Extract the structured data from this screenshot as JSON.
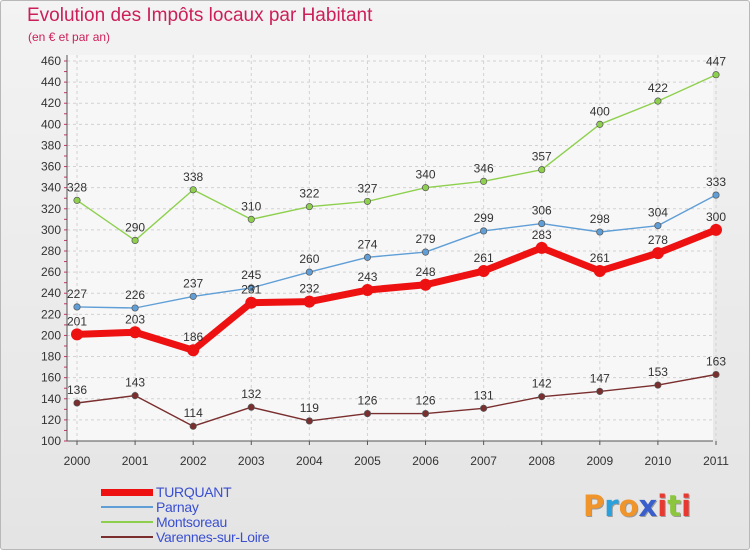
{
  "header": {
    "title": "Evolution des Impôts locaux par Habitant",
    "subtitle": "(en € et par an)"
  },
  "logo": {
    "text": "Proxiti",
    "letters": [
      {
        "char": "P",
        "color": "#f0942c"
      },
      {
        "char": "r",
        "color": "#2aa0dc"
      },
      {
        "char": "o",
        "color": "#f0942c"
      },
      {
        "char": "x",
        "color": "#3a5fcd"
      },
      {
        "char": "i",
        "color": "#e8382f"
      },
      {
        "char": "t",
        "color": "#8cc63f"
      },
      {
        "char": "i",
        "color": "#e8382f"
      }
    ]
  },
  "chart_data": {
    "type": "line",
    "title": "Evolution des Impôts locaux par Habitant",
    "subtitle": "(en € et par an)",
    "xlabel": "",
    "ylabel": "",
    "x": [
      "2000",
      "2001",
      "2002",
      "2003",
      "2004",
      "2005",
      "2006",
      "2007",
      "2008",
      "2009",
      "2010",
      "2011"
    ],
    "ylim": [
      100,
      460
    ],
    "yticks": [
      100,
      120,
      140,
      160,
      180,
      200,
      220,
      240,
      260,
      280,
      300,
      320,
      340,
      360,
      380,
      400,
      420,
      440,
      460
    ],
    "grid": true,
    "legend_position": "bottom-left",
    "series": [
      {
        "name": "TURQUANT",
        "color": "#ee1111",
        "bold": true,
        "values": [
          201,
          203,
          186,
          231,
          232,
          243,
          248,
          261,
          283,
          261,
          278,
          300
        ]
      },
      {
        "name": "Parnay",
        "color": "#5f9ed6",
        "bold": false,
        "values": [
          227,
          226,
          237,
          245,
          260,
          274,
          279,
          299,
          306,
          298,
          304,
          333
        ]
      },
      {
        "name": "Montsoreau",
        "color": "#8ed04e",
        "bold": false,
        "values": [
          328,
          290,
          338,
          310,
          322,
          327,
          340,
          346,
          357,
          400,
          422,
          447
        ]
      },
      {
        "name": "Varennes-sur-Loire",
        "color": "#7a2e2e",
        "bold": false,
        "values": [
          136,
          143,
          114,
          132,
          119,
          126,
          126,
          131,
          142,
          147,
          153,
          163
        ]
      }
    ]
  }
}
